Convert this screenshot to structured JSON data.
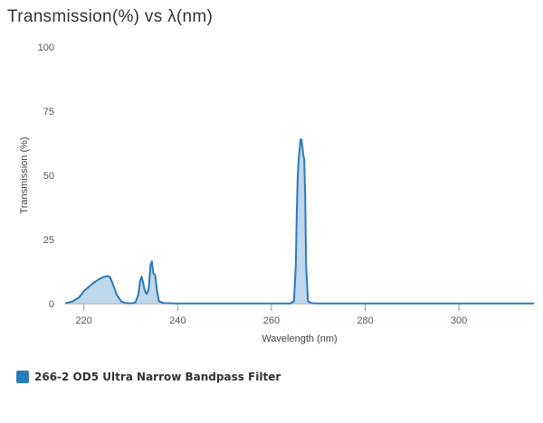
{
  "title": "Transmission(%) vs λ(nm)",
  "colors": {
    "series_line": "#2b7bb9",
    "series_fill": "#a9c8e4",
    "axis": "#999999",
    "gridline": "#e6e6e6"
  },
  "chart_data": {
    "type": "area",
    "title": "Transmission(%) vs λ(nm)",
    "xlabel": "Wavelength (nm)",
    "ylabel": "Transmission (%)",
    "xlim": [
      216,
      316
    ],
    "ylim": [
      0,
      100
    ],
    "x_ticks": [
      220,
      240,
      260,
      280,
      300
    ],
    "y_ticks": [
      0,
      25,
      50,
      75,
      100
    ],
    "grid": false,
    "legend_position": "bottom-left",
    "series": [
      {
        "name": "266-2 OD5 Ultra Narrow Bandpass Filter",
        "x": [
          216,
          217.5,
          219,
          220,
          221,
          222,
          223,
          224,
          225,
          225.5,
          226,
          227,
          228,
          229,
          230,
          231,
          231.6,
          232,
          232.3,
          232.6,
          233,
          233.4,
          233.8,
          234,
          234.2,
          234.5,
          234.8,
          235.2,
          235.6,
          236,
          237,
          240,
          250,
          260,
          264,
          264.8,
          265.2,
          265.4,
          265.6,
          265.8,
          266,
          266.2,
          266.4,
          266.6,
          266.8,
          267,
          267.2,
          267.4,
          267.8,
          268.5,
          270,
          280,
          290,
          300,
          310,
          316
        ],
        "y": [
          0.2,
          0.8,
          2.5,
          5.0,
          6.5,
          8.0,
          9.3,
          10.3,
          10.8,
          10.5,
          8.5,
          3.5,
          0.8,
          0.2,
          0.1,
          0.5,
          3.5,
          9.0,
          10.5,
          8.5,
          5.0,
          3.8,
          5.5,
          10.0,
          15.0,
          16.5,
          12.0,
          11.0,
          5.0,
          1.0,
          0.2,
          0.1,
          0.1,
          0.1,
          0.1,
          1.0,
          15.0,
          35.0,
          49.0,
          56.0,
          60.0,
          64.0,
          64.0,
          61.0,
          58.0,
          56.0,
          42.0,
          15.0,
          1.0,
          0.2,
          0.1,
          0.1,
          0.1,
          0.1,
          0.1,
          0.1
        ]
      }
    ]
  }
}
